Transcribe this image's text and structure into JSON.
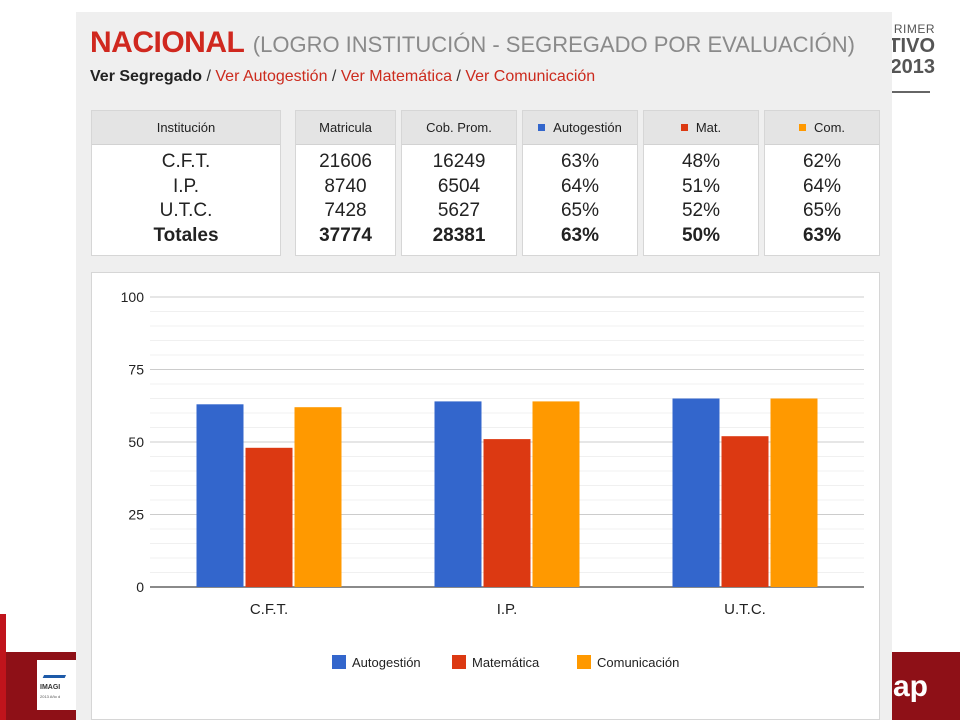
{
  "background": {
    "right_text": [
      "RIMER",
      "TIVO",
      "2013"
    ],
    "footer_logo_text": "IMAGI",
    "footer_logo_subtext": "2013 Año d",
    "footer_right_text": "ap"
  },
  "header": {
    "title": "NACIONAL",
    "subtitle": "(LOGRO INSTITUCIÓN - SEGREGADO POR EVALUACIÓN)"
  },
  "nav": {
    "current": "Ver Segregado",
    "separator": " / ",
    "links": [
      "Ver Autogestión",
      "Ver Matemática",
      "Ver Comunicación"
    ]
  },
  "table": {
    "columns": [
      {
        "header": "Institución",
        "values": [
          "C.F.T.",
          "I.P.",
          "U.T.C."
        ],
        "total": "Totales"
      },
      {
        "header": "Matricula",
        "values": [
          "21606",
          "8740",
          "7428"
        ],
        "total": "37774"
      },
      {
        "header": "Cob. Prom.",
        "values": [
          "16249",
          "6504",
          "5627"
        ],
        "total": "28381"
      },
      {
        "header": "Autogestión",
        "values": [
          "63%",
          "64%",
          "65%"
        ],
        "total": "63%"
      },
      {
        "header": "Mat.",
        "values": [
          "48%",
          "51%",
          "52%"
        ],
        "total": "50%"
      },
      {
        "header": "Com.",
        "values": [
          "62%",
          "64%",
          "65%"
        ],
        "total": "63%"
      }
    ]
  },
  "colors": {
    "autogestion": "#3366cc",
    "matematica": "#dc3912",
    "comunicacion": "#ff9900",
    "title_red": "#d0281f",
    "link_red": "#cc2b1e"
  },
  "chart_data": {
    "type": "bar",
    "categories": [
      "C.F.T.",
      "I.P.",
      "U.T.C."
    ],
    "series": [
      {
        "name": "Autogestión",
        "values": [
          63,
          64,
          65
        ],
        "color": "#3366cc"
      },
      {
        "name": "Matemática",
        "values": [
          48,
          51,
          52
        ],
        "color": "#dc3912"
      },
      {
        "name": "Comunicación",
        "values": [
          62,
          64,
          65
        ],
        "color": "#ff9900"
      }
    ],
    "ylim": [
      0,
      100
    ],
    "yticks": [
      0,
      25,
      50,
      75,
      100
    ],
    "grid": true,
    "legend": "bottom",
    "title": "",
    "xlabel": "",
    "ylabel": ""
  }
}
